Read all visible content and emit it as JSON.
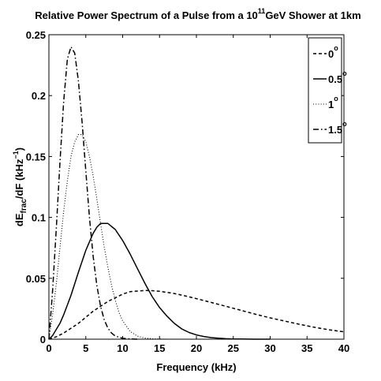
{
  "chart_data": {
    "type": "line",
    "title": {
      "prefix": "Relative Power Spectrum of a Pulse from a 10",
      "superscript": "11",
      "suffix": "GeV Shower at 1km"
    },
    "xlabel": "Frequency (kHz)",
    "ylabel": {
      "main": "dE",
      "subscript": "frac",
      "mid": "/dF (kHz",
      "superscript": "−1",
      "end": ")"
    },
    "xlim": [
      0,
      40
    ],
    "ylim": [
      0,
      0.25
    ],
    "xticks": [
      0,
      5,
      10,
      15,
      20,
      25,
      30,
      35,
      40
    ],
    "yticks": [
      0,
      0.05,
      0.1,
      0.15,
      0.2,
      0.25
    ],
    "xtick_labels": [
      "0",
      "5",
      "10",
      "15",
      "20",
      "25",
      "30",
      "35",
      "40"
    ],
    "ytick_labels": [
      "0",
      "0.05",
      "0.1",
      "0.15",
      "0.2",
      "0.25"
    ],
    "grid": false,
    "legend_position": "top-right",
    "series": [
      {
        "name": "0",
        "name_superscript": "o",
        "dash": "dashed",
        "x": [
          0,
          1,
          2,
          3,
          4,
          5,
          6,
          7,
          8,
          9,
          10,
          11,
          12,
          13,
          14,
          15,
          16,
          17,
          18,
          19,
          20,
          22,
          24,
          26,
          28,
          30,
          32,
          34,
          36,
          38,
          40
        ],
        "y": [
          0,
          0.002,
          0.005,
          0.009,
          0.013,
          0.018,
          0.023,
          0.027,
          0.031,
          0.034,
          0.037,
          0.039,
          0.0395,
          0.04,
          0.0398,
          0.0393,
          0.0385,
          0.0375,
          0.0362,
          0.0348,
          0.0333,
          0.0302,
          0.027,
          0.0238,
          0.0205,
          0.0175,
          0.0148,
          0.0122,
          0.0098,
          0.0077,
          0.006
        ]
      },
      {
        "name": "0.5",
        "name_superscript": "o",
        "dash": "solid",
        "x": [
          0,
          0.5,
          1,
          1.5,
          2,
          3,
          4,
          5,
          6,
          6.5,
          7,
          7.5,
          8,
          9,
          10,
          11,
          12,
          13,
          14,
          15,
          16,
          17,
          18,
          19,
          20,
          21,
          22,
          23,
          24,
          25,
          26,
          28,
          30
        ],
        "y": [
          0,
          0.003,
          0.008,
          0.013,
          0.02,
          0.036,
          0.055,
          0.073,
          0.087,
          0.092,
          0.095,
          0.095,
          0.095,
          0.09,
          0.081,
          0.07,
          0.058,
          0.046,
          0.035,
          0.026,
          0.019,
          0.013,
          0.0085,
          0.0055,
          0.0035,
          0.0022,
          0.0013,
          0.0008,
          0.0004,
          0.0002,
          0.0001,
          0,
          0
        ]
      },
      {
        "name": "1",
        "name_superscript": "o",
        "dash": "dotted",
        "x": [
          0,
          0.5,
          1,
          1.5,
          2,
          2.5,
          3,
          3.5,
          4,
          4.5,
          5,
          5.5,
          6,
          6.5,
          7,
          7.5,
          8,
          8.5,
          9,
          9.5,
          10,
          11,
          12,
          13,
          14,
          15,
          16
        ],
        "y": [
          0,
          0.02,
          0.045,
          0.075,
          0.105,
          0.13,
          0.15,
          0.162,
          0.168,
          0.168,
          0.162,
          0.15,
          0.134,
          0.115,
          0.095,
          0.076,
          0.059,
          0.044,
          0.032,
          0.022,
          0.015,
          0.0065,
          0.0025,
          0.0009,
          0.0003,
          0.0001,
          0
        ]
      },
      {
        "name": "1.5",
        "name_superscript": "o",
        "dash": "dashdot",
        "x": [
          0,
          0.5,
          1,
          1.5,
          2,
          2.5,
          3,
          3.5,
          4,
          4.5,
          5,
          5.5,
          6,
          6.5,
          7,
          7.5,
          8,
          8.5,
          9,
          10,
          11,
          12
        ],
        "y": [
          0,
          0.04,
          0.09,
          0.145,
          0.195,
          0.23,
          0.24,
          0.235,
          0.212,
          0.178,
          0.138,
          0.1,
          0.068,
          0.044,
          0.027,
          0.016,
          0.009,
          0.005,
          0.0026,
          0.0007,
          0.0002,
          0
        ]
      }
    ]
  }
}
